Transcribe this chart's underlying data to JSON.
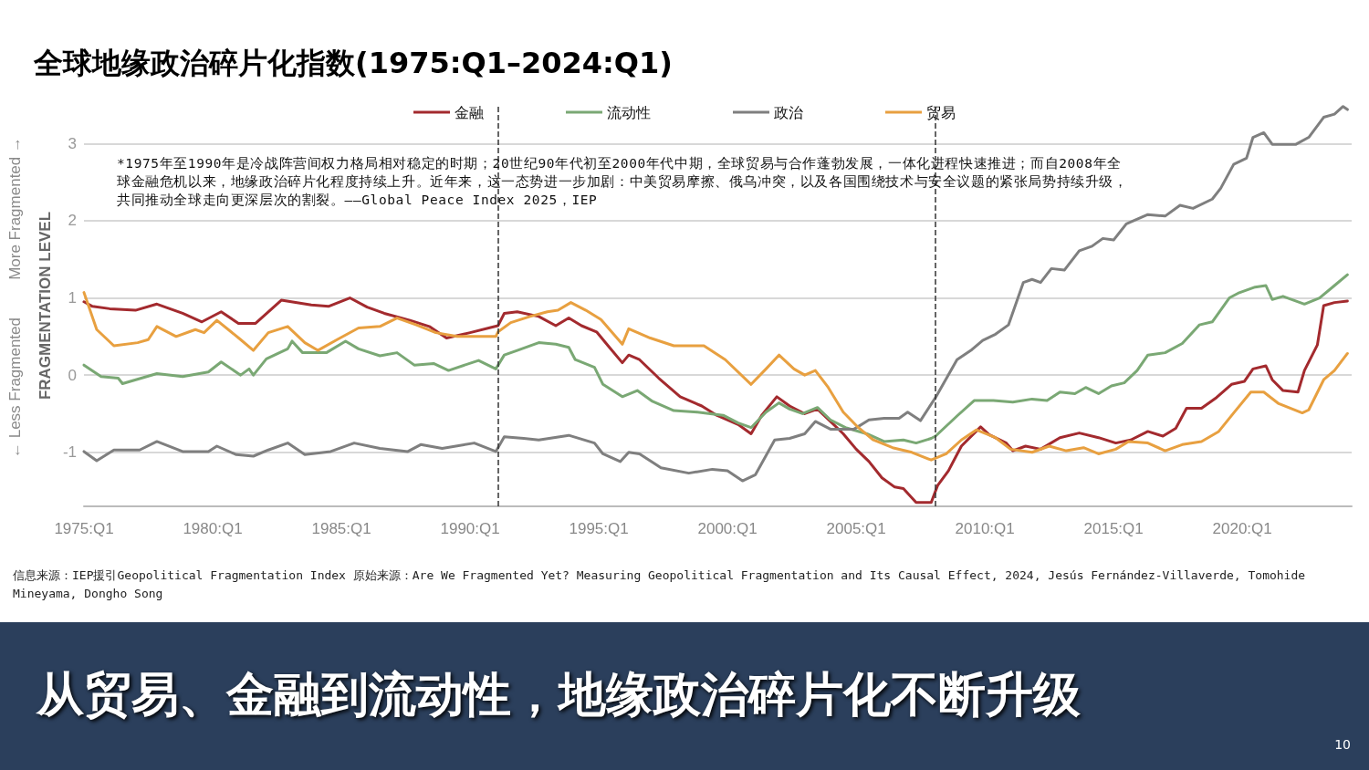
{
  "chart_data": {
    "type": "line",
    "title": "全球地缘政治碎片化指数(1975:Q1–2024:Q1)",
    "subtitle": "从贸易、金融到流动性，地缘政治碎片化不断升级",
    "ylabel": "FRAGMENTATION LEVEL",
    "annotations": [
      "*1975年至1990年是冷战阵营间权力格局相对稳定的时期；20世纪90年代初至2000年代中期，全球贸易与合作蓬勃发展，一体化进程快速推进；而自2008年全球金融危机以来，地缘政治碎片化程度持续上升。近年来，这一态势进一步加剧：中美贸易摩擦、俄乌冲突，以及各国围绕技术与安全议题的紧张局势持续升级，共同推动全球走向更深层次的割裂。——Global Peace Index 2025，IEP",
      "信息来源：IEP援引Geopolitical Fragmentation Index 原始来源：Are We Fragmented Yet? Measuring Geopolitical Fragmentation and Its Causal Effect, 2024, Jesús Fernández-Villaverde, Tomohide Mineyama, Dongho Song",
      "← Less Fragmented",
      "More Fragmented →",
      "10"
    ],
    "xlim": [
      "1975-01",
      "2024-04"
    ],
    "xticks": [
      {
        "value": "1975-01",
        "label": "1975:Q1"
      },
      {
        "value": "1980-01",
        "label": "1980:Q1"
      },
      {
        "value": "1985-01",
        "label": "1985:Q1"
      },
      {
        "value": "1990-01",
        "label": "1990:Q1"
      },
      {
        "value": "1995-01",
        "label": "1995:Q1"
      },
      {
        "value": "2000-01",
        "label": "2000:Q1"
      },
      {
        "value": "2005-01",
        "label": "2005:Q1"
      },
      {
        "value": "2010-01",
        "label": "2010:Q1"
      },
      {
        "value": "2015-01",
        "label": "2015:Q1"
      },
      {
        "value": "2020-01",
        "label": "2020:Q1"
      }
    ],
    "ylim": [
      -1.7,
      3.5
    ],
    "yticks": [
      -1,
      0,
      1,
      2,
      3
    ],
    "grid": "y",
    "legend": "top",
    "marker": "none",
    "line_style": "solid",
    "ref_lines": [
      {
        "axis": "x",
        "value": "1991-02",
        "color": "#333333",
        "line_style": "dashed"
      },
      {
        "axis": "x",
        "value": "2008-02",
        "color": "#333333",
        "line_style": "dashed"
      }
    ],
    "series": [
      {
        "name": "金融",
        "color": "#a32a2e",
        "x": [
          "1975-01",
          "1975-05",
          "1976-01",
          "1977-01",
          "1977-11",
          "1978-11",
          "1979-08",
          "1980-05",
          "1981-01",
          "1981-09",
          "1982-09",
          "1983-11",
          "1984-07",
          "1985-05",
          "1986-01",
          "1986-09",
          "1987-09",
          "1988-06",
          "1989-02",
          "1990-01",
          "1990-11",
          "1991-02",
          "1991-05",
          "1991-11",
          "1992-09",
          "1993-05",
          "1993-11",
          "1994-05",
          "1994-12",
          "1995-06",
          "1995-12",
          "1996-03",
          "1996-08",
          "1997-05",
          "1998-03",
          "1999-01",
          "1999-08",
          "2000-06",
          "2000-12",
          "2001-05",
          "2001-12",
          "2002-06",
          "2003-01",
          "2003-07",
          "2004-01",
          "2004-07",
          "2005-01",
          "2005-07",
          "2006-01",
          "2006-07",
          "2006-11",
          "2007-05",
          "2007-12",
          "2008-03",
          "2008-08",
          "2009-02",
          "2009-11",
          "2010-03",
          "2010-11",
          "2011-02",
          "2011-08",
          "2012-03",
          "2012-12",
          "2013-09",
          "2014-06",
          "2015-02",
          "2015-09",
          "2016-05",
          "2016-12",
          "2017-06",
          "2017-11",
          "2018-06",
          "2019-01",
          "2019-08",
          "2020-02",
          "2020-06",
          "2020-12",
          "2021-03",
          "2021-08",
          "2022-03",
          "2022-06",
          "2022-12",
          "2023-03",
          "2023-08",
          "2024-02"
        ],
        "values": [
          0.95,
          0.89,
          0.86,
          0.84,
          0.92,
          0.8,
          0.69,
          0.82,
          0.67,
          0.67,
          0.97,
          0.91,
          0.89,
          1.0,
          0.88,
          0.8,
          0.71,
          0.63,
          0.48,
          0.55,
          0.62,
          0.64,
          0.8,
          0.82,
          0.76,
          0.64,
          0.74,
          0.64,
          0.56,
          0.36,
          0.16,
          0.26,
          0.2,
          -0.04,
          -0.28,
          -0.4,
          -0.52,
          -0.64,
          -0.76,
          -0.52,
          -0.28,
          -0.4,
          -0.5,
          -0.44,
          -0.6,
          -0.76,
          -0.96,
          -1.12,
          -1.33,
          -1.45,
          -1.47,
          -1.65,
          -1.65,
          -1.43,
          -1.24,
          -0.92,
          -0.67,
          -0.77,
          -0.88,
          -0.98,
          -0.92,
          -0.96,
          -0.81,
          -0.75,
          -0.81,
          -0.88,
          -0.84,
          -0.73,
          -0.79,
          -0.69,
          -0.43,
          -0.43,
          -0.29,
          -0.12,
          -0.08,
          0.08,
          0.12,
          -0.06,
          -0.2,
          -0.22,
          0.06,
          0.39,
          0.9,
          0.94,
          0.96
        ]
      },
      {
        "name": "流动性",
        "color": "#7aa874",
        "x": [
          "1975-01",
          "1975-09",
          "1976-05",
          "1976-07",
          "1977-11",
          "1978-11",
          "1979-11",
          "1980-05",
          "1981-02",
          "1981-06",
          "1981-08",
          "1982-02",
          "1982-12",
          "1983-02",
          "1983-07",
          "1984-06",
          "1985-03",
          "1985-09",
          "1986-07",
          "1987-03",
          "1987-11",
          "1988-08",
          "1989-03",
          "1990-05",
          "1991-01",
          "1991-05",
          "1991-11",
          "1992-09",
          "1993-05",
          "1993-11",
          "1994-02",
          "1994-11",
          "1995-03",
          "1995-12",
          "1996-07",
          "1997-02",
          "1997-12",
          "1998-11",
          "1999-11",
          "2000-06",
          "2000-12",
          "2001-07",
          "2002-01",
          "2002-06",
          "2002-12",
          "2003-07",
          "2004-01",
          "2004-08",
          "2005-06",
          "2006-02",
          "2006-11",
          "2007-05",
          "2007-12",
          "2008-02",
          "2008-12",
          "2009-08",
          "2010-05",
          "2011-02",
          "2011-11",
          "2012-06",
          "2012-12",
          "2013-07",
          "2013-12",
          "2014-06",
          "2014-12",
          "2015-06",
          "2015-12",
          "2016-05",
          "2017-01",
          "2017-09",
          "2018-05",
          "2018-11",
          "2019-07",
          "2019-11",
          "2020-07",
          "2020-12",
          "2021-03",
          "2021-08",
          "2022-06",
          "2023-01",
          "2023-08",
          "2024-02"
        ],
        "values": [
          0.13,
          -0.02,
          -0.04,
          -0.11,
          0.02,
          -0.02,
          0.04,
          0.17,
          0.0,
          0.08,
          0.0,
          0.21,
          0.34,
          0.44,
          0.29,
          0.29,
          0.44,
          0.34,
          0.25,
          0.29,
          0.13,
          0.15,
          0.06,
          0.19,
          0.08,
          0.26,
          0.32,
          0.42,
          0.4,
          0.36,
          0.2,
          0.1,
          -0.12,
          -0.28,
          -0.2,
          -0.34,
          -0.46,
          -0.48,
          -0.52,
          -0.62,
          -0.68,
          -0.48,
          -0.36,
          -0.44,
          -0.5,
          -0.42,
          -0.58,
          -0.68,
          -0.76,
          -0.86,
          -0.84,
          -0.88,
          -0.82,
          -0.79,
          -0.53,
          -0.33,
          -0.33,
          -0.35,
          -0.31,
          -0.33,
          -0.22,
          -0.24,
          -0.16,
          -0.24,
          -0.14,
          -0.1,
          0.06,
          0.26,
          0.29,
          0.41,
          0.65,
          0.69,
          1.0,
          1.06,
          1.14,
          1.16,
          0.98,
          1.02,
          0.92,
          1.0,
          1.16,
          1.3
        ]
      },
      {
        "name": "政治",
        "color": "#7f7f7f",
        "x": [
          "1975-01",
          "1975-07",
          "1976-03",
          "1977-03",
          "1977-11",
          "1978-11",
          "1979-11",
          "1980-03",
          "1980-12",
          "1981-08",
          "1982-03",
          "1982-12",
          "1983-08",
          "1984-08",
          "1985-07",
          "1986-07",
          "1987-08",
          "1988-02",
          "1988-12",
          "1990-03",
          "1991-01",
          "1991-05",
          "1992-02",
          "1992-09",
          "1993-11",
          "1994-11",
          "1995-03",
          "1995-11",
          "1996-03",
          "1996-08",
          "1997-06",
          "1998-07",
          "1999-06",
          "2000-01",
          "2000-08",
          "2001-02",
          "2001-11",
          "2002-06",
          "2003-01",
          "2003-06",
          "2004-01",
          "2004-12",
          "2005-07",
          "2006-02",
          "2006-09",
          "2007-01",
          "2007-07",
          "2008-02",
          "2008-12",
          "2009-07",
          "2009-12",
          "2010-06",
          "2010-12",
          "2011-07",
          "2011-11",
          "2012-03",
          "2012-08",
          "2013-02",
          "2013-09",
          "2014-03",
          "2014-08",
          "2015-01",
          "2015-07",
          "2016-05",
          "2017-01",
          "2017-08",
          "2018-02",
          "2018-11",
          "2019-03",
          "2019-09",
          "2020-03",
          "2020-06",
          "2020-11",
          "2021-03",
          "2022-02",
          "2022-08",
          "2023-03",
          "2023-08",
          "2023-12",
          "2024-02"
        ],
        "values": [
          -0.99,
          -1.11,
          -0.97,
          -0.97,
          -0.86,
          -0.99,
          -0.99,
          -0.92,
          -1.03,
          -1.05,
          -0.97,
          -0.88,
          -1.03,
          -0.99,
          -0.88,
          -0.95,
          -0.99,
          -0.9,
          -0.95,
          -0.88,
          -0.99,
          -0.8,
          -0.82,
          -0.84,
          -0.78,
          -0.88,
          -1.02,
          -1.12,
          -1.0,
          -1.02,
          -1.2,
          -1.27,
          -1.22,
          -1.24,
          -1.37,
          -1.29,
          -0.84,
          -0.82,
          -0.76,
          -0.6,
          -0.7,
          -0.7,
          -0.58,
          -0.56,
          -0.56,
          -0.48,
          -0.59,
          -0.29,
          0.2,
          0.33,
          0.45,
          0.53,
          0.65,
          1.2,
          1.24,
          1.2,
          1.38,
          1.36,
          1.61,
          1.67,
          1.77,
          1.75,
          1.96,
          2.08,
          2.06,
          2.2,
          2.16,
          2.28,
          2.42,
          2.73,
          2.81,
          3.08,
          3.14,
          2.99,
          2.99,
          3.08,
          3.34,
          3.38,
          3.48,
          3.44
        ]
      },
      {
        "name": "贸易",
        "color": "#e8a040",
        "x": [
          "1975-01",
          "1975-07",
          "1976-03",
          "1977-02",
          "1977-07",
          "1977-11",
          "1978-08",
          "1979-05",
          "1979-09",
          "1980-03",
          "1981-02",
          "1981-08",
          "1982-03",
          "1982-12",
          "1983-08",
          "1984-02",
          "1984-11",
          "1985-09",
          "1986-07",
          "1987-03",
          "1987-12",
          "1988-09",
          "1989-07",
          "1991-01",
          "1991-02",
          "1991-08",
          "1992-05",
          "1993-01",
          "1993-06",
          "1993-12",
          "1994-07",
          "1995-02",
          "1995-12",
          "1996-03",
          "1997-01",
          "1997-12",
          "1999-02",
          "1999-12",
          "2000-12",
          "2001-07",
          "2002-01",
          "2002-08",
          "2003-01",
          "2003-06",
          "2003-12",
          "2004-07",
          "2005-02",
          "2005-09",
          "2006-06",
          "2007-03",
          "2007-12",
          "2008-07",
          "2009-02",
          "2009-09",
          "2010-06",
          "2011-01",
          "2011-11",
          "2012-07",
          "2013-03",
          "2013-11",
          "2014-06",
          "2015-02",
          "2015-08",
          "2016-05",
          "2017-01",
          "2017-09",
          "2018-06",
          "2019-02",
          "2019-09",
          "2020-05",
          "2020-11",
          "2021-06",
          "2022-05",
          "2022-08",
          "2023-03",
          "2023-08",
          "2024-02"
        ],
        "values": [
          1.07,
          0.59,
          0.38,
          0.42,
          0.46,
          0.63,
          0.5,
          0.59,
          0.55,
          0.71,
          0.46,
          0.32,
          0.55,
          0.63,
          0.42,
          0.32,
          0.46,
          0.61,
          0.63,
          0.74,
          0.65,
          0.55,
          0.5,
          0.5,
          0.56,
          0.68,
          0.76,
          0.82,
          0.84,
          0.94,
          0.84,
          0.72,
          0.4,
          0.6,
          0.48,
          0.38,
          0.38,
          0.2,
          -0.12,
          0.08,
          0.26,
          0.08,
          0.0,
          0.06,
          -0.16,
          -0.48,
          -0.68,
          -0.84,
          -0.94,
          -1.0,
          -1.1,
          -1.02,
          -0.84,
          -0.71,
          -0.81,
          -0.96,
          -1.0,
          -0.92,
          -0.98,
          -0.94,
          -1.02,
          -0.96,
          -0.86,
          -0.88,
          -0.98,
          -0.9,
          -0.86,
          -0.73,
          -0.49,
          -0.22,
          -0.22,
          -0.37,
          -0.49,
          -0.45,
          -0.06,
          0.06,
          0.28
        ]
      }
    ]
  }
}
